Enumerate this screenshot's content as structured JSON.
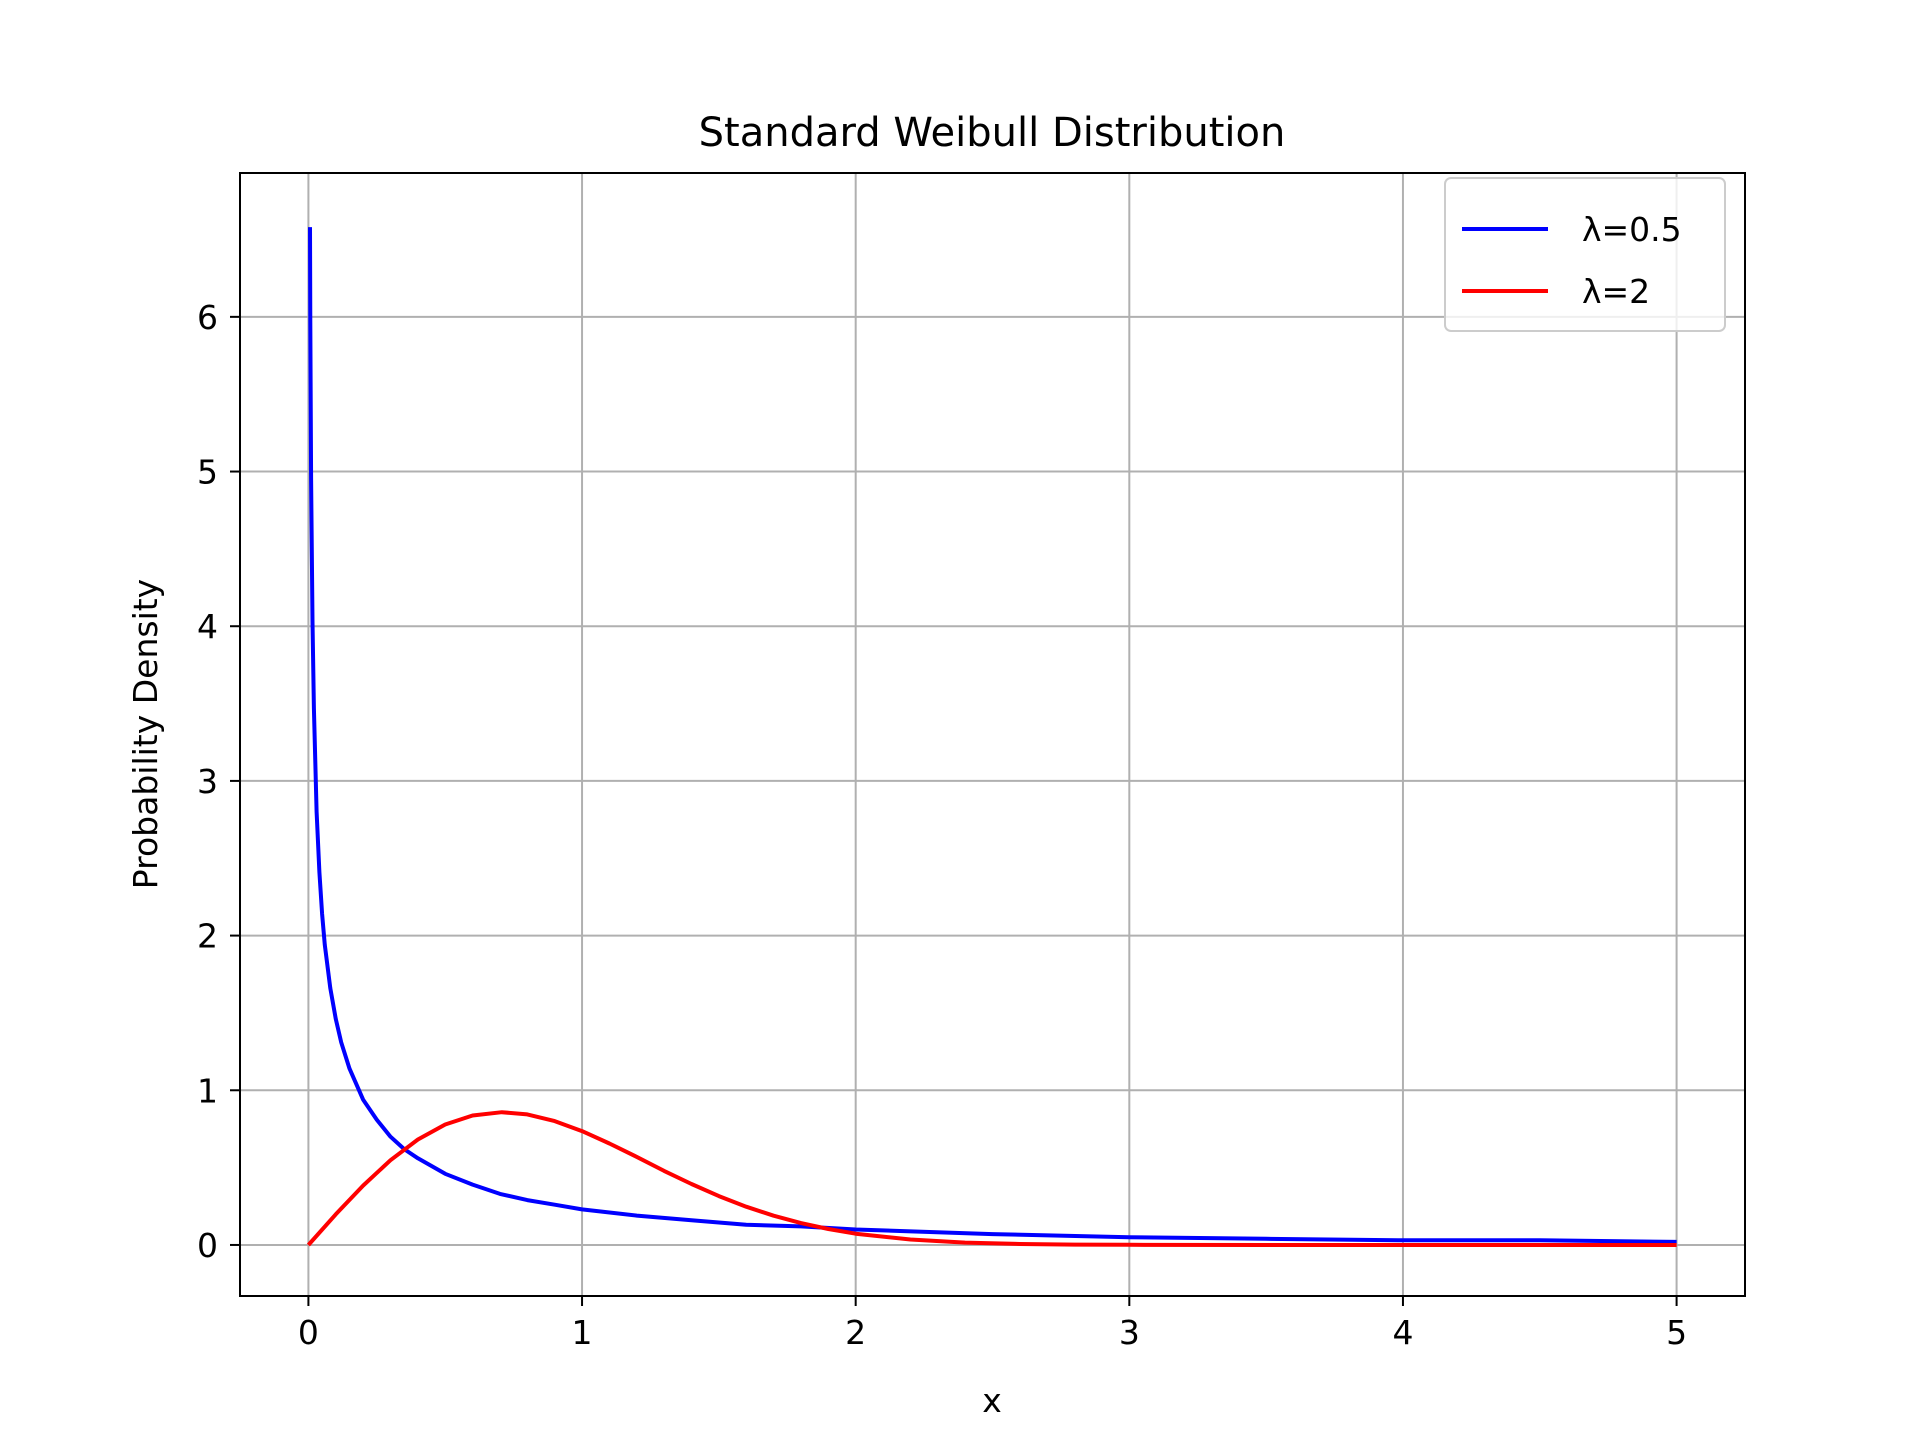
{
  "chart_data": {
    "type": "line",
    "title": "Standard Weibull Distribution",
    "xlabel": "x",
    "ylabel": "Probability Density",
    "xlim": [
      -0.25,
      5.25
    ],
    "ylim": [
      -0.33,
      6.93
    ],
    "xticks": [
      0,
      1,
      2,
      3,
      4,
      5
    ],
    "yticks": [
      0,
      1,
      2,
      3,
      4,
      5,
      6
    ],
    "grid": true,
    "legend_position": "top-right",
    "series": [
      {
        "name": "λ=0.5",
        "color": "#0000ff",
        "x": [
          0.00574,
          0.007,
          0.01,
          0.015,
          0.02,
          0.03,
          0.04,
          0.05,
          0.06,
          0.08,
          0.1,
          0.12,
          0.15,
          0.2,
          0.25,
          0.3,
          0.35,
          0.4,
          0.5,
          0.6,
          0.7,
          0.8,
          0.9,
          1.0,
          1.2,
          1.4,
          1.6,
          1.8,
          2.0,
          2.5,
          3.0,
          3.5,
          4.0,
          4.5,
          5.0
        ],
        "y": [
          6.58,
          5.97,
          4.95,
          4.03,
          3.47,
          2.8,
          2.41,
          2.14,
          1.94,
          1.66,
          1.46,
          1.31,
          1.14,
          0.94,
          0.81,
          0.7,
          0.62,
          0.56,
          0.46,
          0.39,
          0.33,
          0.29,
          0.26,
          0.23,
          0.19,
          0.16,
          0.13,
          0.12,
          0.1,
          0.07,
          0.05,
          0.04,
          0.03,
          0.03,
          0.02
        ]
      },
      {
        "name": "λ=2",
        "color": "#ff0000",
        "x": [
          0,
          0.1,
          0.2,
          0.3,
          0.4,
          0.5,
          0.6,
          0.7071,
          0.8,
          0.9,
          1.0,
          1.1,
          1.2,
          1.3,
          1.4,
          1.5,
          1.6,
          1.7,
          1.8,
          1.9,
          2.0,
          2.2,
          2.4,
          2.6,
          2.8,
          3.0,
          3.5,
          4.0,
          4.5,
          5.0
        ],
        "y": [
          0,
          0.198,
          0.384,
          0.548,
          0.682,
          0.779,
          0.837,
          0.858,
          0.844,
          0.801,
          0.736,
          0.656,
          0.569,
          0.479,
          0.394,
          0.316,
          0.247,
          0.189,
          0.141,
          0.103,
          0.073,
          0.035,
          0.015,
          0.006,
          0.002,
          0.001,
          0,
          0,
          0,
          0
        ]
      }
    ]
  }
}
